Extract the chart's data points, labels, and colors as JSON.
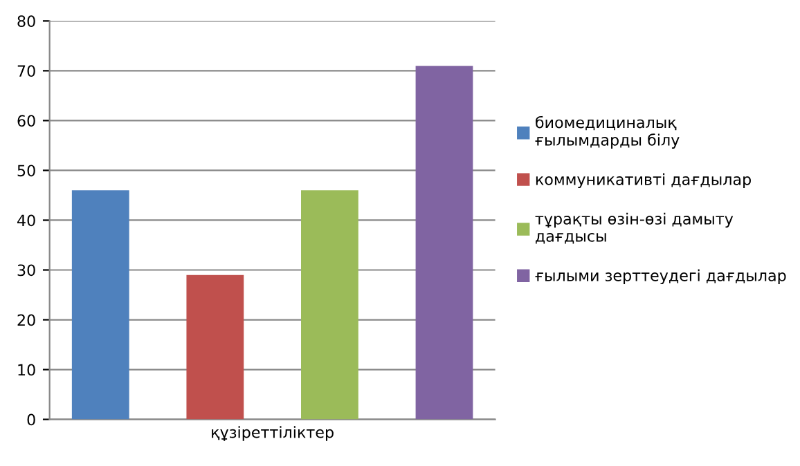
{
  "chart_data": {
    "type": "bar",
    "categories": [
      "құзіреттіліктер"
    ],
    "series": [
      {
        "name": "биомедициналық\nғылымдарды білу",
        "color": "#4f81bd",
        "values": [
          46
        ]
      },
      {
        "name": "коммуникативті дағдылар",
        "color": "#c0504d",
        "values": [
          29
        ]
      },
      {
        "name": "тұрақты өзін-өзі дамыту\nдағдысы",
        "color": "#9bbb59",
        "values": [
          46
        ]
      },
      {
        "name": "ғылыми зерттеудегі дағдылар",
        "color": "#8064a2",
        "values": [
          71
        ]
      }
    ],
    "ylim": [
      0,
      80
    ],
    "yticks": [
      0,
      10,
      20,
      30,
      40,
      50,
      60,
      70,
      80
    ],
    "grid": "y",
    "legend": "right"
  }
}
